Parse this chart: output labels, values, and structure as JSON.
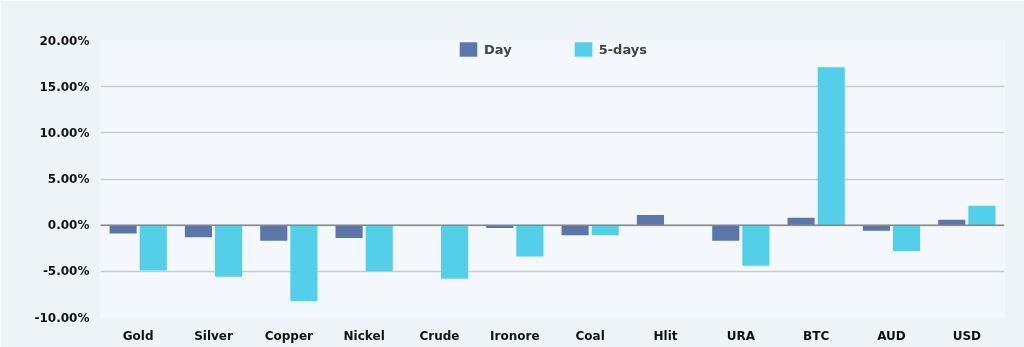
{
  "chart_data": {
    "type": "bar",
    "categories": [
      "Gold",
      "Silver",
      "Copper",
      "Nickel",
      "Crude",
      "Ironore",
      "Coal",
      "Hlit",
      "URA",
      "BTC",
      "AUD",
      "USD"
    ],
    "series": [
      {
        "name": "Day",
        "color": "#5a76ab",
        "values": [
          -0.9,
          -1.3,
          -1.7,
          -1.4,
          0,
          -0.3,
          -1.1,
          1.1,
          -1.7,
          0.8,
          -0.6,
          0.6
        ]
      },
      {
        "name": "5-days",
        "color": "#53cfea",
        "values": [
          -4.9,
          -5.6,
          -8.2,
          -5.0,
          -5.8,
          -3.4,
          -1.1,
          0,
          -4.4,
          17.1,
          -2.8,
          2.1
        ]
      }
    ],
    "ylim": [
      -10,
      20
    ],
    "yticks": [
      {
        "value": -10,
        "label": "-10.00%"
      },
      {
        "value": -5,
        "label": "-5.00%"
      },
      {
        "value": 0,
        "label": "0.00%"
      },
      {
        "value": 5,
        "label": "5.00%"
      },
      {
        "value": 10,
        "label": "10.00%"
      },
      {
        "value": 15,
        "label": "15.00%"
      },
      {
        "value": 20,
        "label": "20.00%"
      }
    ],
    "grid": "y",
    "legend": "top"
  }
}
